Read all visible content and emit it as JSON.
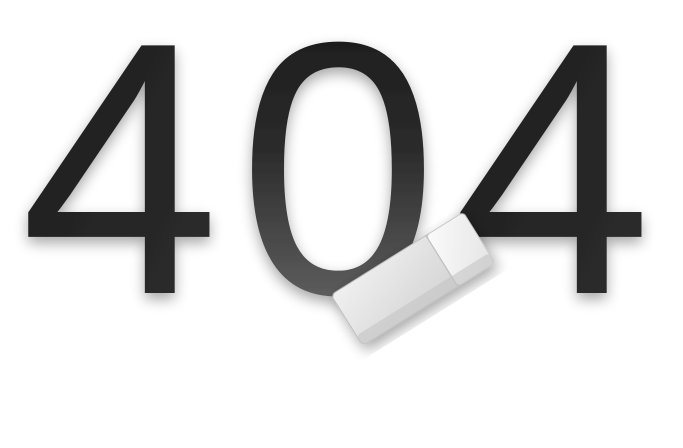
{
  "error": {
    "digit_1": "4",
    "digit_2": "0",
    "digit_3": "4"
  },
  "illustration": {
    "eraser_icon": "eraser-icon",
    "colors": {
      "digit_dark": "#1c1c1c",
      "digit_mid": "#2a2a2a",
      "digit_erased": "#8a8a8a",
      "eraser_body": "#e2e2e2",
      "eraser_sleeve": "#f4f4f4",
      "background": "#ffffff"
    }
  }
}
